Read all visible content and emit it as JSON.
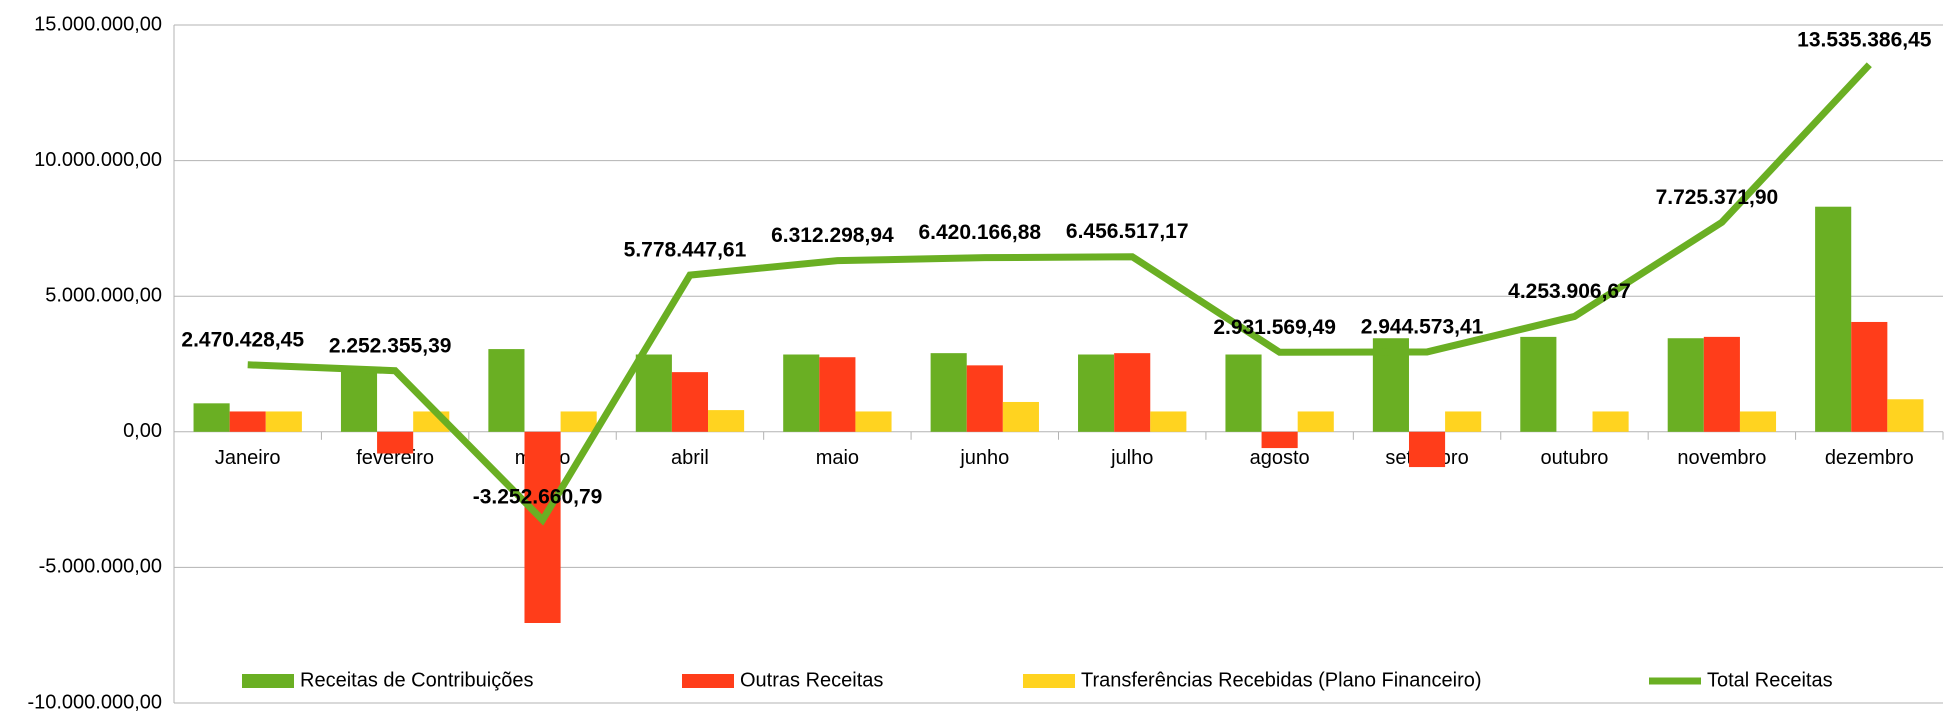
{
  "chart_data": {
    "type": "bar",
    "categories": [
      "Janeiro",
      "fevereiro",
      "março",
      "abril",
      "maio",
      "junho",
      "julho",
      "agosto",
      "setembro",
      "outubro",
      "novembro",
      "dezembro"
    ],
    "series": [
      {
        "name": "Receitas de Contribuições",
        "color": "#6aaf23",
        "values": [
          1050000,
          2300000,
          3050000,
          2850000,
          2850000,
          2900000,
          2850000,
          2850000,
          3450000,
          3500000,
          3450000,
          8300000
        ]
      },
      {
        "name": "Outras Receitas",
        "color": "#ff3d1a",
        "values": [
          750000,
          -800000,
          -7050000,
          2200000,
          2750000,
          2450000,
          2900000,
          -600000,
          -1300000,
          0,
          3500000,
          4050000
        ]
      },
      {
        "name": "Transferências Recebidas (Plano Financeiro)",
        "color": "#ffd320",
        "values": [
          750000,
          750000,
          750000,
          800000,
          750000,
          1100000,
          750000,
          750000,
          750000,
          750000,
          750000,
          1200000
        ]
      },
      {
        "name": "Total Receitas",
        "color": "#6aaf23",
        "type": "line",
        "values": [
          2470428.45,
          2252355.39,
          -3252660.79,
          5778447.61,
          6312298.94,
          6420166.88,
          6456517.17,
          2931569.49,
          2944573.41,
          4253906.67,
          7725371.9,
          13535386.45
        ],
        "value_labels": [
          "2.470.428,45",
          "2.252.355,39",
          "-3.252.660,79",
          "5.778.447,61",
          "6.312.298,94",
          "6.420.166,88",
          "6.456.517,17",
          "2.931.569,49",
          "2.944.573,41",
          "4.253.906,67",
          "7.725.371,90",
          "13.535.386,45"
        ]
      }
    ],
    "ylim": [
      -10000000,
      15000000
    ],
    "yticks": [
      {
        "value": -10000000,
        "label": "-10.000.000,00"
      },
      {
        "value": -5000000,
        "label": "-5.000.000,00"
      },
      {
        "value": 0,
        "label": "0,00"
      },
      {
        "value": 5000000,
        "label": "5.000.000,00"
      },
      {
        "value": 10000000,
        "label": "10.000.000,00"
      },
      {
        "value": 15000000,
        "label": "15.000.000,00"
      }
    ],
    "grid": true,
    "legend": "bottom"
  }
}
